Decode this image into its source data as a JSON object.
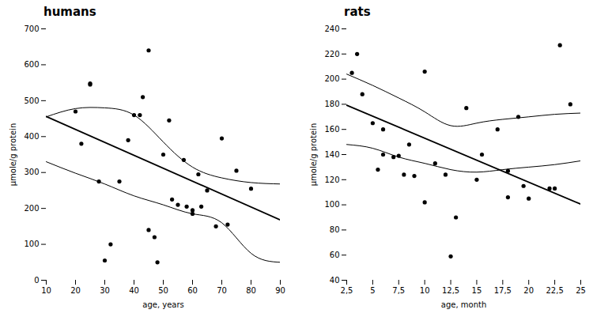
{
  "chart_data": [
    {
      "type": "scatter",
      "title": "humans",
      "xlabel": "age, years",
      "ylabel": "μmole/g protein",
      "xlim": [
        10,
        90
      ],
      "ylim": [
        0,
        700
      ],
      "xticks": [
        10,
        20,
        30,
        40,
        50,
        60,
        70,
        80,
        90
      ],
      "yticks": [
        0,
        100,
        200,
        300,
        400,
        500,
        600,
        700
      ],
      "series": [
        {
          "type": "scatter",
          "color": "#000000",
          "x": [
            20,
            22,
            25,
            25,
            28,
            30,
            32,
            35,
            38,
            40,
            42,
            43,
            45,
            45,
            47,
            48,
            50,
            52,
            53,
            55,
            57,
            58,
            60,
            60,
            62,
            63,
            65,
            68,
            70,
            72,
            75,
            80
          ],
          "values": [
            470,
            380,
            545,
            548,
            275,
            55,
            100,
            275,
            390,
            460,
            460,
            510,
            640,
            140,
            120,
            50,
            350,
            445,
            225,
            210,
            335,
            205,
            195,
            185,
            295,
            205,
            250,
            150,
            395,
            155,
            305,
            255
          ]
        },
        {
          "type": "line",
          "color": "#000000",
          "x": [
            10,
            90
          ],
          "values": [
            456,
            168
          ]
        },
        {
          "type": "line",
          "color": "#000000",
          "x": [
            10,
            20,
            30,
            40,
            50,
            60,
            70,
            80,
            90
          ],
          "values": [
            455,
            478,
            480,
            460,
            385,
            315,
            285,
            272,
            268
          ]
        },
        {
          "type": "line",
          "color": "#000000",
          "x": [
            10,
            20,
            30,
            40,
            50,
            60,
            70,
            80,
            90
          ],
          "values": [
            330,
            298,
            268,
            235,
            210,
            185,
            160,
            75,
            50
          ]
        }
      ]
    },
    {
      "type": "scatter",
      "title": "rats",
      "xlabel": "age, month",
      "ylabel": "μmole/g protein",
      "xlim": [
        2.5,
        25
      ],
      "ylim": [
        40,
        240
      ],
      "xticks": [
        {
          "value": 2.5,
          "label": "2,5"
        },
        5,
        {
          "value": 7.5,
          "label": "7,5"
        },
        10,
        {
          "value": 12.5,
          "label": "12,5"
        },
        15,
        {
          "value": 17.5,
          "label": "17,5"
        },
        20,
        {
          "value": 22.5,
          "label": "22,5"
        },
        25
      ],
      "yticks": [
        40,
        60,
        80,
        100,
        120,
        140,
        160,
        180,
        200,
        220,
        240
      ],
      "series": [
        {
          "type": "scatter",
          "color": "#000000",
          "x": [
            3,
            3.5,
            4,
            5,
            5.5,
            6,
            6,
            7,
            7.5,
            8,
            8.5,
            9,
            10,
            10,
            11,
            12,
            12.5,
            13,
            14,
            15,
            15.5,
            17,
            18,
            18,
            19,
            19.5,
            20,
            22,
            22.5,
            23,
            24
          ],
          "values": [
            205,
            220,
            188,
            165,
            128,
            140,
            160,
            138,
            139,
            124,
            148,
            123,
            102,
            206,
            133,
            124,
            59,
            90,
            177,
            120,
            140,
            160,
            127,
            106,
            170,
            115,
            105,
            113,
            113,
            227,
            180
          ]
        },
        {
          "type": "line",
          "color": "#000000",
          "x": [
            2.5,
            25
          ],
          "values": [
            179.25,
            100.5
          ]
        },
        {
          "type": "line",
          "color": "#000000",
          "x": [
            2.5,
            5,
            7.5,
            10,
            12.5,
            15,
            17.5,
            20,
            22.5,
            25
          ],
          "values": [
            204,
            195,
            185,
            174,
            163,
            165,
            168,
            170,
            172,
            173
          ]
        },
        {
          "type": "line",
          "color": "#000000",
          "x": [
            2.5,
            5,
            7.5,
            10,
            12.5,
            15,
            17.5,
            20,
            22.5,
            25
          ],
          "values": [
            148,
            145,
            138,
            133,
            128,
            126,
            128,
            130,
            132,
            135
          ]
        }
      ]
    }
  ]
}
